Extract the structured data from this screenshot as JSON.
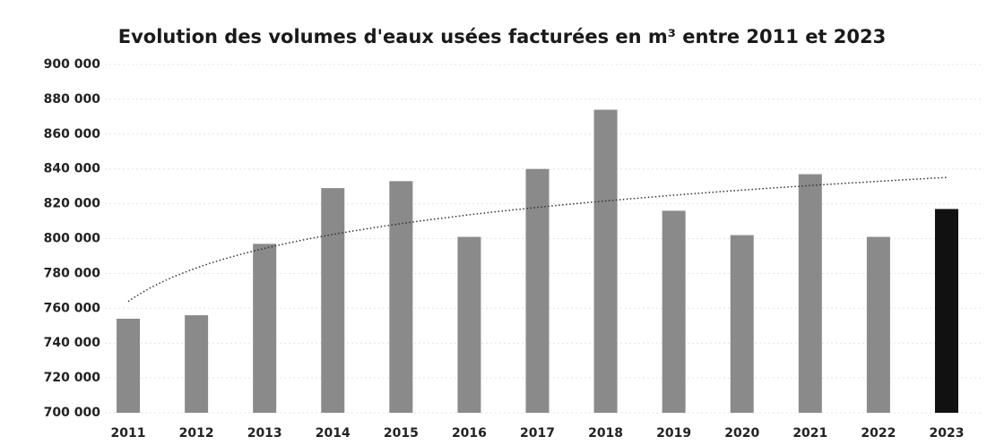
{
  "chart_data": {
    "type": "bar",
    "title": "Evolution des volumes d'eaux usées facturées en m³ entre 2011 et 2023",
    "categories": [
      "2011",
      "2012",
      "2013",
      "2014",
      "2015",
      "2016",
      "2017",
      "2018",
      "2019",
      "2020",
      "2021",
      "2022",
      "2023"
    ],
    "values": [
      754000,
      756000,
      797000,
      829000,
      833000,
      801000,
      840000,
      874000,
      816000,
      802000,
      837000,
      801000,
      817000
    ],
    "colors": [
      "#8a8a8a",
      "#8a8a8a",
      "#8a8a8a",
      "#8a8a8a",
      "#8a8a8a",
      "#8a8a8a",
      "#8a8a8a",
      "#8a8a8a",
      "#8a8a8a",
      "#8a8a8a",
      "#8a8a8a",
      "#8a8a8a",
      "#111111"
    ],
    "ylim": [
      700000,
      900000
    ],
    "yticks": [
      {
        "value": 700000,
        "label": "700 000"
      },
      {
        "value": 720000,
        "label": "720 000"
      },
      {
        "value": 740000,
        "label": "740 000"
      },
      {
        "value": 760000,
        "label": "760 000"
      },
      {
        "value": 780000,
        "label": "780 000"
      },
      {
        "value": 800000,
        "label": "800 000"
      },
      {
        "value": 820000,
        "label": "820 000"
      },
      {
        "value": 840000,
        "label": "840 000"
      },
      {
        "value": 860000,
        "label": "860 000"
      },
      {
        "value": 880000,
        "label": "880 000"
      },
      {
        "value": 900000,
        "label": "900 000"
      }
    ],
    "grid": true,
    "trendline": "logarithmic",
    "trend_color": "#333333"
  }
}
